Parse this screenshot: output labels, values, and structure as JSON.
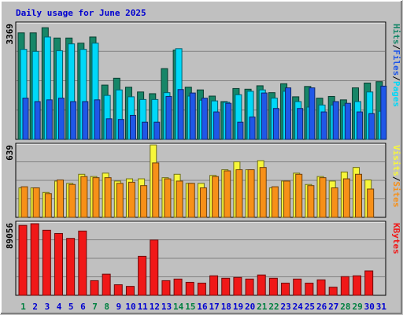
{
  "title": "Daily usage for June 2025",
  "colors": {
    "background": "#c0c0c0",
    "frame": "#ffffff",
    "title": "#0000d0",
    "hits": "#168668",
    "files": "#00d8f8",
    "pages": "#1f57e8",
    "visits": "#f7f73a",
    "sites": "#f79018",
    "kbytes": "#f01818",
    "weekday_label": "#0000d0",
    "weekend_label": "#008040",
    "grid": "#808080"
  },
  "chart_data": [
    {
      "type": "bar",
      "panel": "pages-files-hits",
      "ylabel_parts": [
        "Pages",
        "/",
        "Files",
        "/",
        "Hits"
      ],
      "ylim": [
        0,
        3369
      ],
      "ytick_label": "3369",
      "categories": [
        "1",
        "2",
        "3",
        "4",
        "5",
        "6",
        "7",
        "8",
        "9",
        "10",
        "11",
        "12",
        "13",
        "14",
        "15",
        "16",
        "17",
        "18",
        "19",
        "20",
        "21",
        "22",
        "23",
        "24",
        "25",
        "26",
        "27",
        "28",
        "29",
        "30",
        "31"
      ],
      "weekend_days": [
        "1",
        "7",
        "8",
        "14",
        "15",
        "21",
        "22",
        "28",
        "29"
      ],
      "series": [
        {
          "name": "Hits",
          "values": [
            3100,
            3100,
            3250,
            2950,
            2950,
            2800,
            2980,
            1580,
            1780,
            1520,
            1380,
            1330,
            2060,
            2600,
            1520,
            1440,
            1260,
            1100,
            1480,
            1460,
            1560,
            1360,
            1620,
            1240,
            1540,
            1200,
            1250,
            1150,
            1500,
            1640,
            1680
          ]
        },
        {
          "name": "Files",
          "values": [
            2620,
            2560,
            2980,
            2580,
            2780,
            2620,
            2800,
            1280,
            1440,
            1240,
            1160,
            1160,
            1360,
            2640,
            1260,
            1140,
            1120,
            1080,
            1300,
            1400,
            1440,
            1200,
            1400,
            1100,
            940,
            1000,
            1000,
            980,
            1100,
            1380,
            820
          ]
        },
        {
          "name": "Pages",
          "values": [
            1200,
            1100,
            1150,
            1200,
            1100,
            1100,
            1150,
            600,
            580,
            700,
            500,
            500,
            1250,
            1450,
            1350,
            1200,
            800,
            1050,
            500,
            650,
            1350,
            900,
            1500,
            900,
            1500,
            800,
            1100,
            1050,
            800,
            750,
            1550
          ]
        }
      ]
    },
    {
      "type": "bar",
      "panel": "visits-sites",
      "ylabel_parts": [
        "Sites",
        "/",
        "Visits"
      ],
      "ylim": [
        0,
        639
      ],
      "ytick_label": "639",
      "categories": [
        "1",
        "2",
        "3",
        "4",
        "5",
        "6",
        "7",
        "8",
        "9",
        "10",
        "11",
        "12",
        "13",
        "14",
        "15",
        "16",
        "17",
        "18",
        "19",
        "20",
        "21",
        "22",
        "23",
        "24",
        "25",
        "26",
        "27",
        "28",
        "29",
        "30",
        "31"
      ],
      "series": [
        {
          "name": "Visits",
          "values": [
            260,
            260,
            220,
            320,
            300,
            380,
            360,
            390,
            320,
            340,
            340,
            639,
            350,
            380,
            300,
            300,
            370,
            420,
            490,
            420,
            500,
            260,
            320,
            390,
            290,
            360,
            320,
            400,
            440,
            330,
            0
          ]
        },
        {
          "name": "Sites",
          "values": [
            270,
            260,
            210,
            330,
            290,
            360,
            350,
            350,
            300,
            310,
            280,
            480,
            340,
            320,
            300,
            260,
            360,
            410,
            420,
            420,
            440,
            270,
            320,
            380,
            280,
            350,
            260,
            340,
            380,
            250,
            0
          ]
        }
      ]
    },
    {
      "type": "bar",
      "panel": "kbytes",
      "ylabel_parts": [
        "KBytes"
      ],
      "ylim": [
        0,
        89056
      ],
      "ytick_label": "89056",
      "categories": [
        "1",
        "2",
        "3",
        "4",
        "5",
        "6",
        "7",
        "8",
        "9",
        "10",
        "11",
        "12",
        "13",
        "14",
        "15",
        "16",
        "17",
        "18",
        "19",
        "20",
        "21",
        "22",
        "23",
        "24",
        "25",
        "26",
        "27",
        "28",
        "29",
        "30",
        "31"
      ],
      "series": [
        {
          "name": "KBytes",
          "values": [
            86000,
            88000,
            80000,
            76000,
            70000,
            79000,
            18000,
            26000,
            13000,
            11000,
            48000,
            68000,
            18000,
            20000,
            16000,
            15000,
            24000,
            21000,
            22000,
            20000,
            25000,
            21000,
            15000,
            20000,
            15000,
            19000,
            10000,
            23000,
            24000,
            30000,
            0
          ]
        }
      ]
    }
  ]
}
